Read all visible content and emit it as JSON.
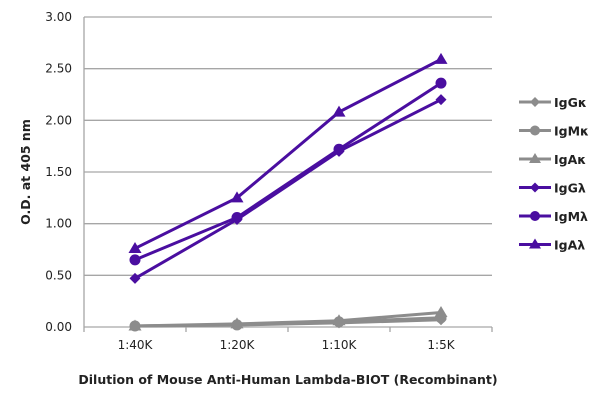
{
  "chart_data": {
    "type": "line",
    "title": "",
    "xlabel": "Dilution of Mouse Anti-Human Lambda-BIOT (Recombinant)",
    "ylabel": "O.D. at 405 nm",
    "categories": [
      "1:40K",
      "1:20K",
      "1:10K",
      "1:5K"
    ],
    "ylim": [
      0,
      3
    ],
    "yticks": [
      "0.00",
      "0.50",
      "1.00",
      "1.50",
      "2.00",
      "2.50",
      "3.00"
    ],
    "grid": "horizontal",
    "legend": "right",
    "series": [
      {
        "name": "IgGκ",
        "marker": "diamond",
        "color": "#8c8c8c",
        "values": [
          0.01,
          0.02,
          0.04,
          0.07
        ]
      },
      {
        "name": "IgMκ",
        "marker": "circle",
        "color": "#8c8c8c",
        "values": [
          0.01,
          0.02,
          0.05,
          0.09
        ]
      },
      {
        "name": "IgAκ",
        "marker": "triangle",
        "color": "#8c8c8c",
        "values": [
          0.01,
          0.03,
          0.06,
          0.14
        ]
      },
      {
        "name": "IgGλ",
        "marker": "diamond",
        "color": "#4a0ea0",
        "values": [
          0.47,
          1.04,
          1.7,
          2.2
        ]
      },
      {
        "name": "IgMλ",
        "marker": "circle",
        "color": "#4a0ea0",
        "values": [
          0.65,
          1.06,
          1.72,
          2.36
        ]
      },
      {
        "name": "IgAλ",
        "marker": "triangle",
        "color": "#4a0ea0",
        "values": [
          0.76,
          1.25,
          2.08,
          2.59
        ]
      }
    ]
  }
}
